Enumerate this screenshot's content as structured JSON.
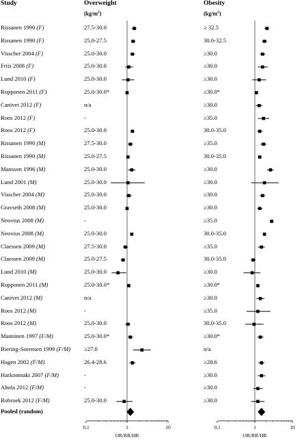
{
  "headers": {
    "study": "Study",
    "overweight": "Overweight",
    "obesity": "Obesity",
    "unit_prefix": "(kg/m",
    "unit_sup": "2",
    "unit_suffix": ")"
  },
  "axis": {
    "ticks": [
      "0,1",
      "1",
      "10"
    ],
    "xlabel": "OR/RR/HR",
    "scale": "log",
    "xlim": [
      0.1,
      10
    ]
  },
  "pooled_label": "Pooled (random)",
  "rows": [
    {
      "study": "Rissanen 1990",
      "sex": "(F)",
      "ow_range": "27.5-30.0",
      "ow": [
        1.5,
        1.3,
        1.7
      ],
      "ob_range": "≥ 32.5",
      "ob": [
        2.1,
        1.8,
        2.4
      ]
    },
    {
      "study": "Rissanen 1990",
      "sex": "(F)",
      "ow_range": "25.0-27.5",
      "ow": [
        1.4,
        1.25,
        1.6
      ],
      "ob_range": "30.0-32.5",
      "ob": [
        1.8,
        1.55,
        2.1
      ]
    },
    {
      "study": "Visscher 2004",
      "sex": "(F)",
      "ow_range": "25.0-30.0",
      "ow": [
        1.35,
        1.2,
        1.55
      ],
      "ob_range": "≥30.0",
      "ob": [
        1.6,
        1.35,
        1.9
      ]
    },
    {
      "study": "Friis 2008",
      "sex": "(F)",
      "ow_range": "25.0-30.0",
      "ow": [
        1.1,
        0.9,
        1.4
      ],
      "ob_range": "≥30.0",
      "ob": [
        1.6,
        1.2,
        2.2
      ]
    },
    {
      "study": "Lund 2010",
      "sex": "(F)",
      "ow_range": "25.0-30.0",
      "ow": [
        1.05,
        0.75,
        1.5
      ],
      "ob_range": "≥30.0",
      "ob": [
        1.3,
        0.85,
        2.0
      ]
    },
    {
      "study": "Ropponen 2011",
      "sex": "(F)",
      "ow_range": "25.0-30.0*",
      "ow": [
        1.0,
        0.92,
        1.08
      ],
      "ob_range": "≥30.0*",
      "ob": [
        1.1,
        1.0,
        1.2
      ]
    },
    {
      "study": "Canivet 2012",
      "sex": "(F)",
      "ow_range": "n/a",
      "ow": null,
      "ob_range": "≥30.0",
      "ob": [
        1.3,
        1.05,
        1.6
      ]
    },
    {
      "study": "Roos 2012",
      "sex": "(F)",
      "ow_range": "-",
      "ow": null,
      "ob_range": "≥35.0",
      "ob": [
        1.7,
        1.2,
        2.4
      ]
    },
    {
      "study": "Roos 2012",
      "sex": "(F)",
      "ow_range": "25.0-30.0",
      "ow": [
        1.35,
        1.2,
        1.5
      ],
      "ob_range": "30.0-35.0",
      "ob": [
        1.35,
        1.15,
        1.6
      ]
    },
    {
      "study": "Rissanen 1990",
      "sex": "(M)",
      "ow_range": "27.5-30.0",
      "ow": [
        1.2,
        1.05,
        1.4
      ],
      "ob_range": "≥35.0",
      "ob": [
        1.7,
        1.4,
        2.05
      ]
    },
    {
      "study": "Rissanen 1990",
      "sex": "(M)",
      "ow_range": "25.0-27.5",
      "ow": [
        1.05,
        0.95,
        1.15
      ],
      "ob_range": "30.0-35.0",
      "ob": [
        1.35,
        1.2,
        1.5
      ]
    },
    {
      "study": "Mansson 1996",
      "sex": "(M)",
      "ow_range": "25.0-30.0",
      "ow": [
        1.3,
        1.05,
        1.6
      ],
      "ob_range": "≥30.0",
      "ob": [
        2.6,
        2.1,
        3.2
      ]
    },
    {
      "study": "Lund 2001",
      "sex": "(M)",
      "ow_range": "25.0-30.0",
      "ow": [
        1.05,
        0.4,
        2.7
      ],
      "ob_range": "≥30.0",
      "ob": [
        1.8,
        0.8,
        4.3
      ]
    },
    {
      "study": "Visscher 2004",
      "sex": "(M)",
      "ow_range": "25.0-30.0",
      "ow": [
        1.1,
        0.95,
        1.3
      ],
      "ob_range": "≥30.0",
      "ob": [
        1.6,
        1.35,
        1.9
      ]
    },
    {
      "study": "Gravseth 2008",
      "sex": "(M)",
      "ow_range": "25.0-30.0",
      "ow": [
        1.0,
        0.92,
        1.08
      ],
      "ob_range": "≥30.0",
      "ob": [
        1.35,
        1.15,
        1.6
      ]
    },
    {
      "study": "Neovius 2008",
      "sex": "(M)",
      "ow_range": "-",
      "ow": null,
      "ob_range": "≥35.0",
      "ob": [
        2.8,
        2.55,
        3.1
      ]
    },
    {
      "study": "Neovius 2008",
      "sex": "(M)",
      "ow_range": "25.0-30.0",
      "ow": [
        1.3,
        1.2,
        1.4
      ],
      "ob_range": "30.0-35.0",
      "ob": [
        1.8,
        1.65,
        2.0
      ]
    },
    {
      "study": "Claessen 2009",
      "sex": "(M)",
      "ow_range": "27.5-30.0",
      "ow": [
        0.9,
        0.8,
        1.05
      ],
      "ob_range": "≥35.0",
      "ob": [
        1.5,
        1.2,
        1.85
      ]
    },
    {
      "study": "Claessen 2009",
      "sex": "(M)",
      "ow_range": "25.0-27.5",
      "ow": [
        0.8,
        0.7,
        0.9
      ],
      "ob_range": "30.0-35.0",
      "ob": [
        0.9,
        0.78,
        1.05
      ]
    },
    {
      "study": "Lund 2010",
      "sex": "(M)",
      "ow_range": "25.0-30.0",
      "ow": [
        0.6,
        0.42,
        0.95
      ],
      "ob_range": "≥30.0",
      "ob": [
        0.85,
        0.5,
        1.4
      ]
    },
    {
      "study": "Ropponen 2011",
      "sex": "(M)",
      "ow_range": "25.0-30.0*",
      "ow": [
        1.1,
        1.02,
        1.18
      ],
      "ob_range": "≥30.0*",
      "ob": [
        1.2,
        1.08,
        1.35
      ]
    },
    {
      "study": "Canivet 2012",
      "sex": "(M)",
      "ow_range": "n/a",
      "ow": null,
      "ob_range": "≥30.0",
      "ob": [
        1.4,
        1.1,
        1.8
      ]
    },
    {
      "study": "Roos 2012",
      "sex": "(M)",
      "ow_range": "-",
      "ow": null,
      "ob_range": "≥35.0",
      "ob": [
        1.2,
        0.6,
        2.6
      ]
    },
    {
      "study": "Roos 2012",
      "sex": "(M)",
      "ow_range": "25.0-30.0",
      "ow": [
        1.05,
        0.9,
        1.2
      ],
      "ob_range": "30.0-35.0",
      "ob": [
        0.95,
        0.55,
        1.7
      ]
    },
    {
      "study": "Manninen 1997",
      "sex": "(F/M)",
      "ow_range": "25.0-30.0*",
      "ow": [
        1.2,
        1.05,
        1.4
      ],
      "ob_range": "≥30.0*",
      "ob": [
        1.4,
        1.15,
        1.7
      ]
    },
    {
      "study": "Biering-Sorensen 1999",
      "sex": "(F/M)",
      "ow_range": "≥27.0",
      "ow": [
        2.3,
        1.4,
        3.8
      ],
      "ob_range": "n/a",
      "ob": null
    },
    {
      "study": "Hagen 2002",
      "sex": "(F/M)",
      "ow_range": "26.4-28.6",
      "ow": [
        1.35,
        1.15,
        1.6
      ],
      "ob_range": "≥28.6",
      "ob": [
        1.5,
        1.25,
        1.8
      ]
    },
    {
      "study": "Harkonmaki 2007",
      "sex": "(F/M)",
      "ow_range": "-",
      "ow": null,
      "ob_range": "≥30.0",
      "ob": [
        1.5,
        1.2,
        1.9
      ]
    },
    {
      "study": "Ahola 2012",
      "sex": "(F/M)",
      "ow_range": "-",
      "ow": null,
      "ob_range": "≥30.0",
      "ob": [
        1.2,
        0.9,
        1.6
      ]
    },
    {
      "study": "Robroek 2012",
      "sex": "(F/M)",
      "ow_range": "25.0-30.0",
      "ow": [
        0.85,
        0.55,
        1.35
      ],
      "ob_range": "≥30.0",
      "ob": [
        1.2,
        0.8,
        1.8
      ]
    }
  ],
  "pooled": {
    "ow": 1.2,
    "ob": 1.5
  }
}
